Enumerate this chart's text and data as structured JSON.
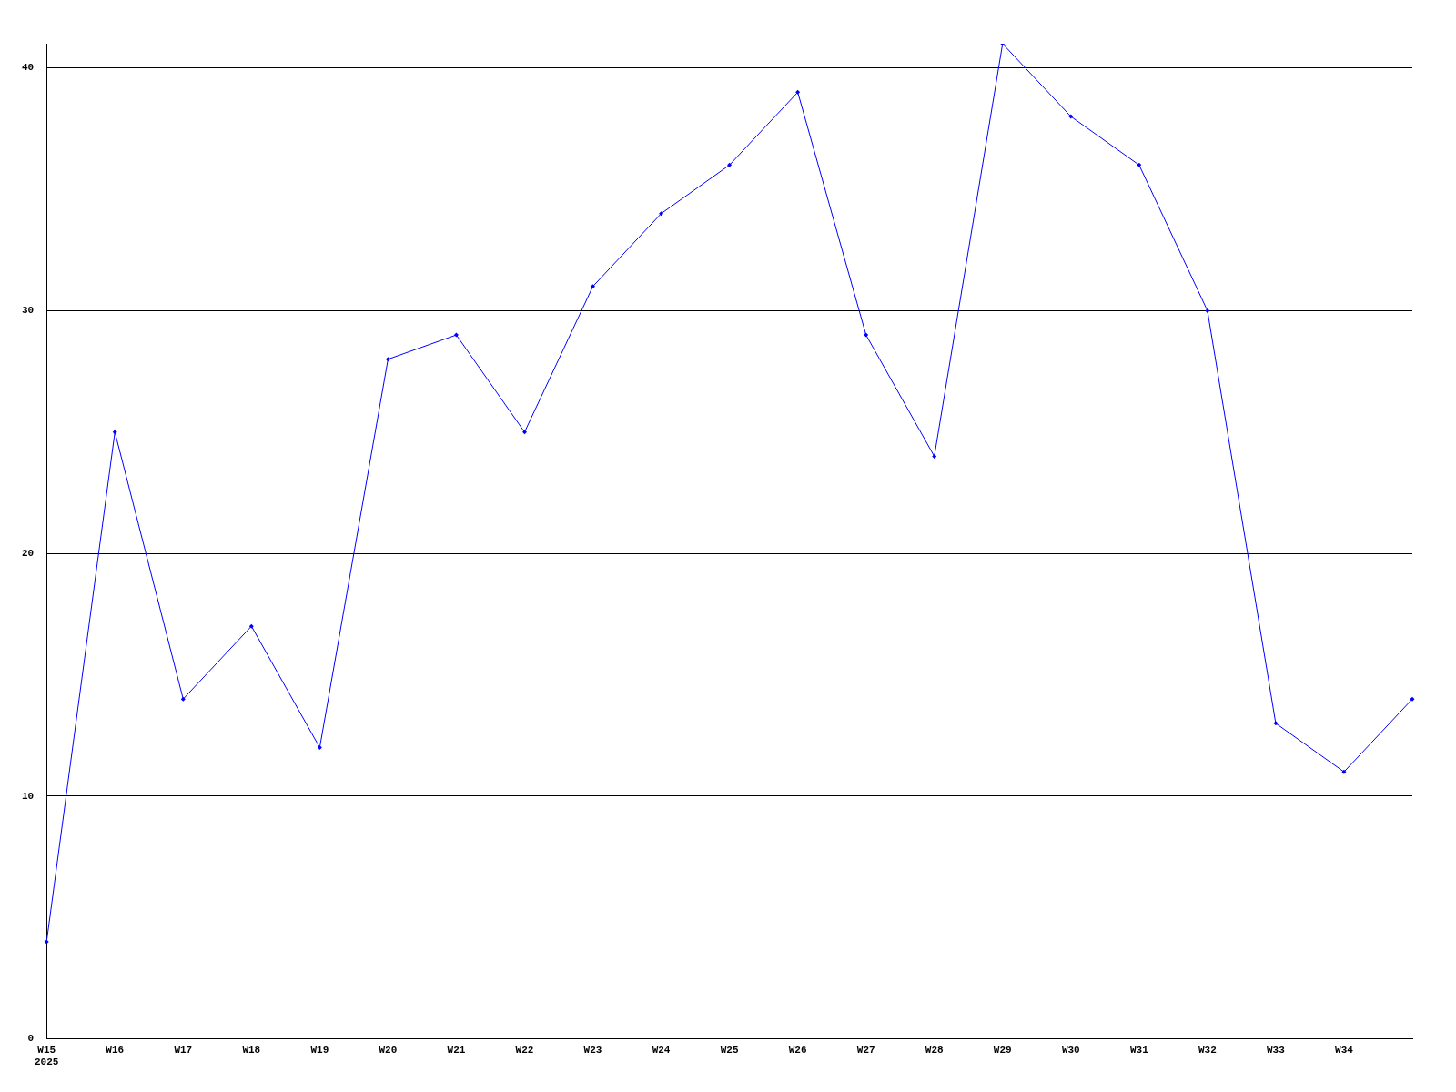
{
  "chart_data": {
    "type": "line",
    "categories": [
      "W15\n2025",
      "W16",
      "W17",
      "W18",
      "W19",
      "W20",
      "W21",
      "W22",
      "W23",
      "W24",
      "W25",
      "W26",
      "W27",
      "W28",
      "W29",
      "W30",
      "W31",
      "W32",
      "W33",
      "W34",
      null
    ],
    "series": [
      {
        "color": "#0000ff",
        "values": [
          4,
          25,
          14,
          17,
          12,
          28,
          29,
          25,
          31,
          34,
          36,
          39,
          29,
          24,
          41,
          38,
          36,
          30,
          13,
          11,
          14
        ]
      }
    ],
    "ylim": [
      0,
      41
    ],
    "yticks": [
      0,
      10,
      20,
      30,
      40
    ],
    "grid": "y",
    "legend": false,
    "marker": "diamond",
    "line_style": "solid"
  }
}
